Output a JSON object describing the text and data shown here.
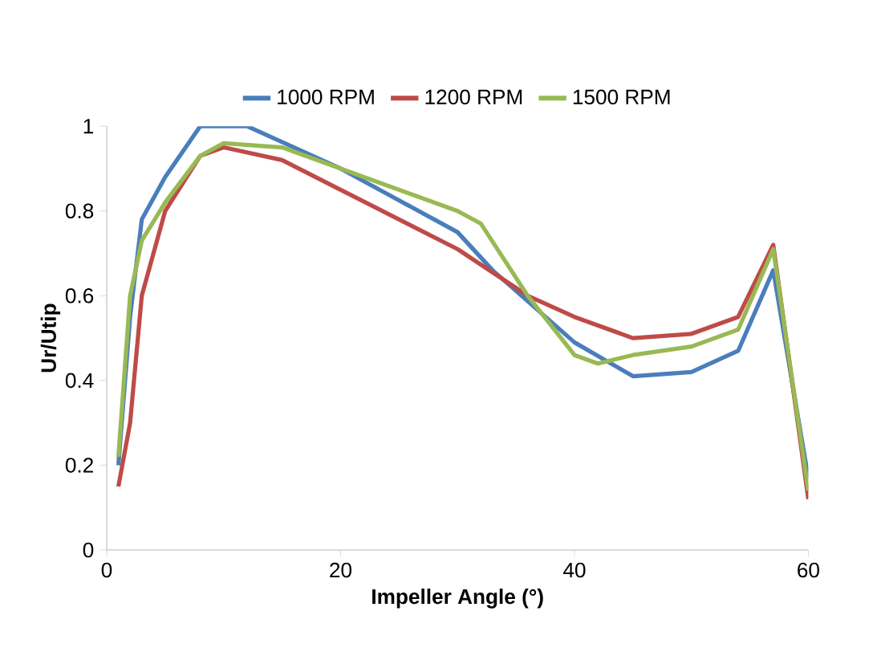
{
  "chart_data": {
    "type": "line",
    "xlabel": "Impeller Angle (°)",
    "ylabel": "Ur/Utip",
    "xlim": [
      0,
      60
    ],
    "ylim": [
      0,
      1
    ],
    "xticks": [
      0,
      20,
      40,
      60
    ],
    "yticks": [
      0,
      0.2,
      0.4,
      0.6,
      0.8,
      1
    ],
    "legend": "top",
    "grid": false,
    "marker": "none",
    "line_style": "solid",
    "series": [
      {
        "name": "1000 RPM",
        "color": "#4a7ebb",
        "x": [
          1,
          2,
          3,
          5,
          8,
          12,
          20,
          30,
          33,
          40,
          45,
          50,
          54,
          57,
          60
        ],
        "values": [
          0.2,
          0.55,
          0.78,
          0.88,
          1.0,
          1.0,
          0.9,
          0.75,
          0.66,
          0.49,
          0.41,
          0.42,
          0.47,
          0.66,
          0.17
        ]
      },
      {
        "name": "1200 RPM",
        "color": "#be4b48",
        "x": [
          1,
          2,
          3,
          5,
          8,
          10,
          15,
          20,
          30,
          36,
          40,
          45,
          50,
          54,
          57,
          60
        ],
        "values": [
          0.15,
          0.3,
          0.6,
          0.8,
          0.93,
          0.95,
          0.92,
          0.85,
          0.71,
          0.6,
          0.55,
          0.5,
          0.51,
          0.55,
          0.72,
          0.12
        ]
      },
      {
        "name": "1500 RPM",
        "color": "#98b954",
        "x": [
          1,
          2,
          3,
          5,
          8,
          10,
          15,
          20,
          30,
          32,
          36,
          40,
          42,
          45,
          50,
          54,
          57,
          60
        ],
        "values": [
          0.22,
          0.6,
          0.73,
          0.82,
          0.93,
          0.96,
          0.95,
          0.9,
          0.8,
          0.77,
          0.6,
          0.46,
          0.44,
          0.46,
          0.48,
          0.52,
          0.71,
          0.14
        ]
      }
    ]
  }
}
